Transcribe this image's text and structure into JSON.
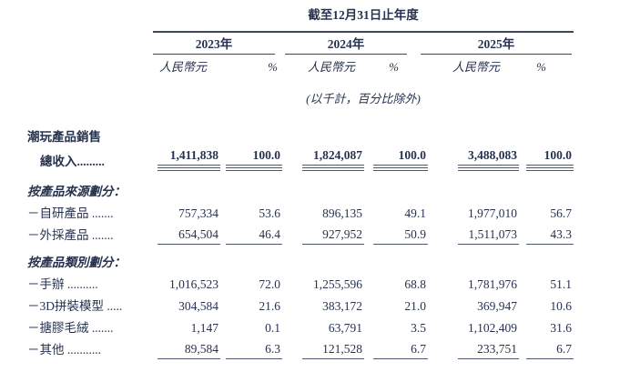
{
  "doc": {
    "period_header": "截至12月31日止年度",
    "years": {
      "y2023": "2023年",
      "y2024": "2024年",
      "y2025": "2025年"
    },
    "subcols": {
      "currency": "人民幣元",
      "percent": "%"
    },
    "unit_note": "(以千計，百分比除外)",
    "rows": {
      "group_sales": {
        "label": "潮玩產品銷售"
      },
      "total_revenue": {
        "label": "總收入.........",
        "values": [
          "1,411,838",
          "100.0",
          "1,824,087",
          "100.0",
          "3,488,083",
          "100.0"
        ]
      },
      "by_source": {
        "label": "按產品來源劃分："
      },
      "self_developed": {
        "label": "－自研產品 .......",
        "values": [
          "757,334",
          "53.6",
          "896,135",
          "49.1",
          "1,977,010",
          "56.7"
        ]
      },
      "outsourced": {
        "label": "－外採產品 .......",
        "values": [
          "654,504",
          "46.4",
          "927,952",
          "50.9",
          "1,511,073",
          "43.3"
        ]
      },
      "by_category": {
        "label": "按產品類別劃分："
      },
      "figures": {
        "label": "－手辦 ..........",
        "values": [
          "1,016,523",
          "72.0",
          "1,255,596",
          "68.8",
          "1,781,976",
          "51.1"
        ]
      },
      "models_3d": {
        "label": "－3D拼裝模型 .....",
        "values": [
          "304,584",
          "21.6",
          "383,172",
          "21.0",
          "369,947",
          "10.6"
        ]
      },
      "vinyl_plush": {
        "label": "－搪膠毛絨 .......",
        "values": [
          "1,147",
          "0.1",
          "63,791",
          "3.5",
          "1,102,409",
          "31.6"
        ]
      },
      "others": {
        "label": "－其他 ...........",
        "values": [
          "89,584",
          "6.3",
          "121,528",
          "6.7",
          "233,751",
          "6.7"
        ]
      }
    }
  }
}
